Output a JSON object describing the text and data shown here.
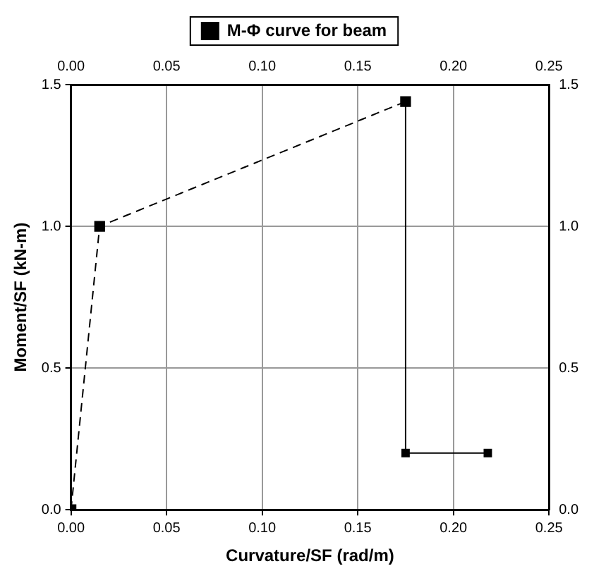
{
  "chart_data": {
    "type": "line",
    "xlabel": "Curvature/SF (rad/m)",
    "ylabel": "Moment/SF (kN-m)",
    "series": [
      {
        "color": "#000000",
        "line_style": "dashed",
        "x": [
          0,
          0.015,
          0.175
        ],
        "values": [
          0,
          1.0,
          1.44
        ]
      },
      {
        "name": "M-Φ curve for beam",
        "color": "#000000",
        "line_style": "solid",
        "x": [
          0.175,
          0.175,
          0.218
        ],
        "values": [
          1.44,
          0.2,
          0.2
        ]
      }
    ],
    "xlim": [
      0,
      0.25
    ],
    "xticks": [
      {
        "value": 0,
        "label": "0.00"
      },
      {
        "value": 0.05,
        "label": "0.05"
      },
      {
        "value": 0.1,
        "label": "0.10"
      },
      {
        "value": 0.15,
        "label": "0.15"
      },
      {
        "value": 0.2,
        "label": "0.20"
      },
      {
        "value": 0.25,
        "label": "0.25"
      }
    ],
    "x2lim": [
      0,
      0.25
    ],
    "x2ticks": [
      {
        "value": 0,
        "label": "0.00"
      },
      {
        "value": 0.05,
        "label": "0.05"
      },
      {
        "value": 0.1,
        "label": "0.10"
      },
      {
        "value": 0.15,
        "label": "0.15"
      },
      {
        "value": 0.2,
        "label": "0.20"
      },
      {
        "value": 0.25,
        "label": "0.25"
      }
    ],
    "ylim": [
      0,
      1.5
    ],
    "yticks": [
      {
        "value": 0,
        "label": "0.0"
      },
      {
        "value": 0.5,
        "label": "0.5"
      },
      {
        "value": 1,
        "label": "1.0"
      },
      {
        "value": 1.5,
        "label": "1.5"
      }
    ],
    "y2lim": [
      0,
      1.5
    ],
    "y2ticks": [
      {
        "value": 0,
        "label": "0.0"
      },
      {
        "value": 0.5,
        "label": "0.5"
      },
      {
        "value": 1,
        "label": "1.0"
      },
      {
        "value": 1.5,
        "label": "1.5"
      }
    ],
    "grid": true,
    "legend": "top",
    "marker": "square"
  }
}
